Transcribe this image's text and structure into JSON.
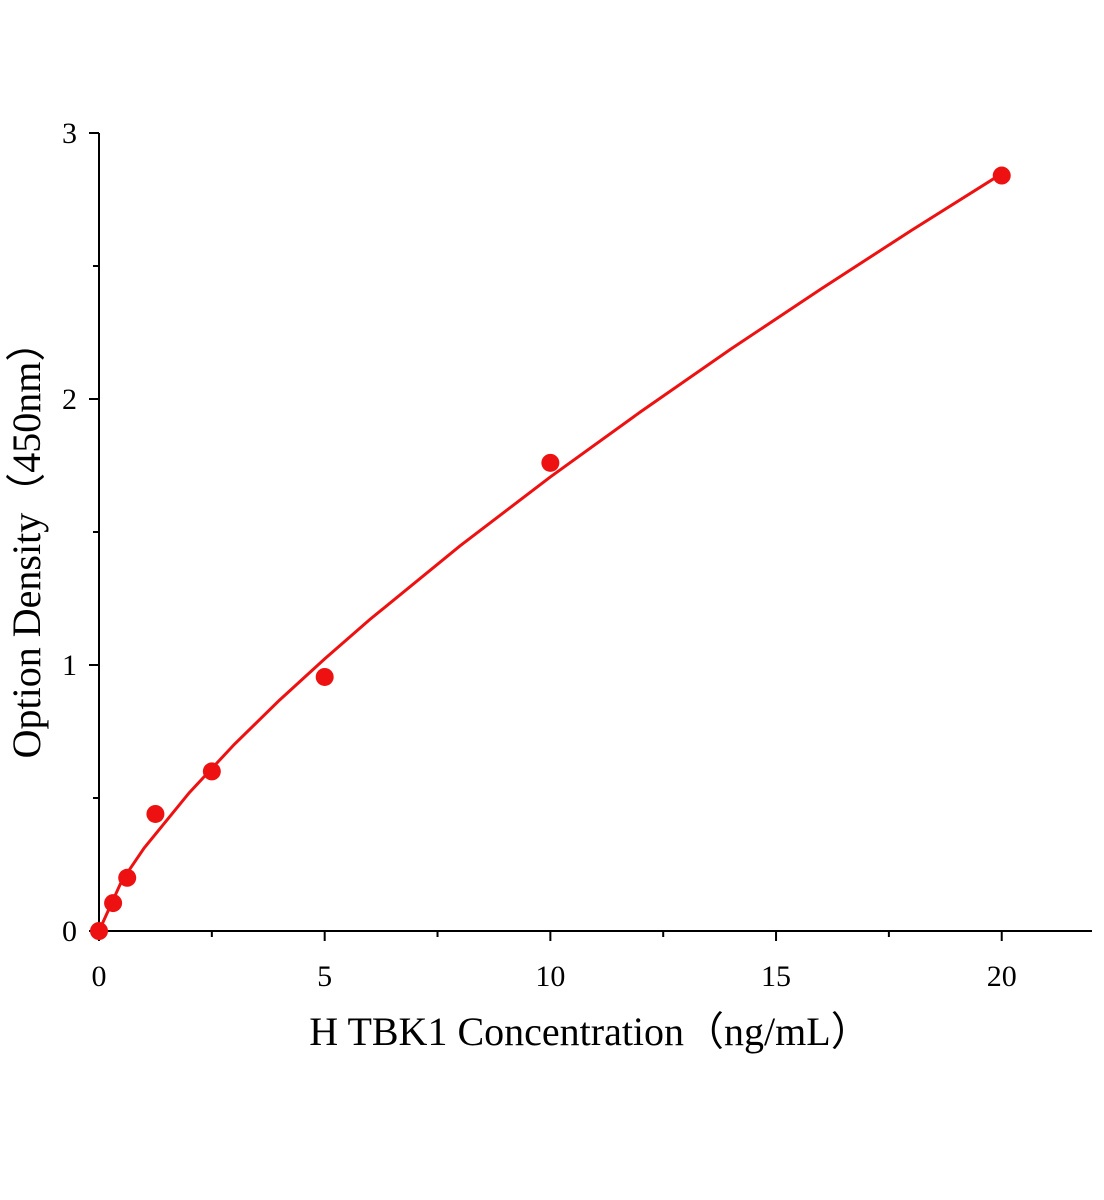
{
  "chart_data": {
    "type": "scatter",
    "x_label": "H TBK1 Concentration（ng/mL）",
    "y_label": "Option Density（450nm）",
    "xlim": [
      0,
      22
    ],
    "ylim": [
      0,
      3
    ],
    "xticks": [
      0,
      5,
      10,
      15,
      20
    ],
    "yticks": [
      0,
      1,
      2,
      3
    ],
    "xminorticks": [
      2.5,
      7.5,
      12.5,
      17.5
    ],
    "yminorticks": [
      0.5,
      1.5,
      2.5
    ],
    "series": [
      {
        "mode": "markers",
        "color": "#ee1111",
        "x": [
          0,
          0.3125,
          0.625,
          1.25,
          2.5,
          5,
          10,
          20
        ],
        "values": [
          0.0,
          0.105,
          0.2,
          0.44,
          0.6,
          0.955,
          1.76,
          2.84
        ]
      },
      {
        "mode": "line",
        "color": "#ee1111",
        "x": [
          0,
          0.5,
          1,
          2,
          3,
          4,
          5,
          6,
          8,
          10,
          12,
          14,
          16,
          18,
          20
        ],
        "values": [
          0,
          0.187,
          0.312,
          0.52,
          0.702,
          0.868,
          1.023,
          1.171,
          1.448,
          1.707,
          1.952,
          2.188,
          2.414,
          2.634,
          2.847
        ]
      }
    ]
  }
}
